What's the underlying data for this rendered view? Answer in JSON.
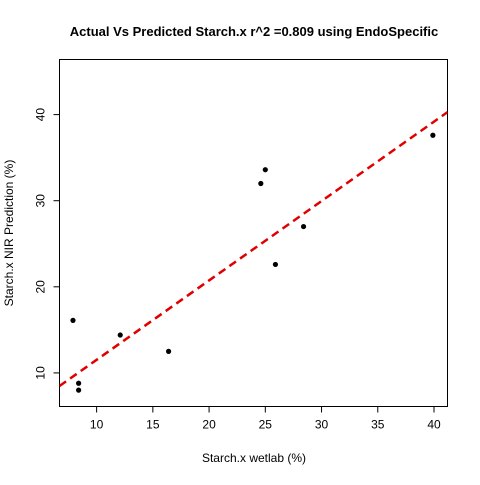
{
  "chart_data": {
    "type": "scatter",
    "title": "Actual Vs Predicted Starch.x r^2 =0.809 using EndoSpecific",
    "xlabel": "Starch.x wetlab (%)",
    "ylabel": "Starch.x NIR Prediction (%)",
    "xlim": [
      6.7,
      41.2
    ],
    "ylim": [
      6.1,
      46.4
    ],
    "xticks": [
      "10",
      "15",
      "20",
      "25",
      "30",
      "35",
      "40"
    ],
    "yticks": [
      "10",
      "20",
      "30",
      "40"
    ],
    "points": [
      {
        "x": 7.9,
        "y": 16.1
      },
      {
        "x": 8.4,
        "y": 8.8
      },
      {
        "x": 8.4,
        "y": 8.0
      },
      {
        "x": 12.1,
        "y": 14.4
      },
      {
        "x": 16.4,
        "y": 12.5
      },
      {
        "x": 24.6,
        "y": 32.0
      },
      {
        "x": 25.0,
        "y": 33.6
      },
      {
        "x": 25.9,
        "y": 22.6
      },
      {
        "x": 28.4,
        "y": 27.0
      },
      {
        "x": 39.9,
        "y": 37.6
      }
    ],
    "fit_line": {
      "intercept": 2.3,
      "slope": 0.922
    },
    "colors": {
      "points": "#000000",
      "fit_line": "#e00000",
      "axes": "#000000"
    },
    "grid": false,
    "legend": "none"
  }
}
